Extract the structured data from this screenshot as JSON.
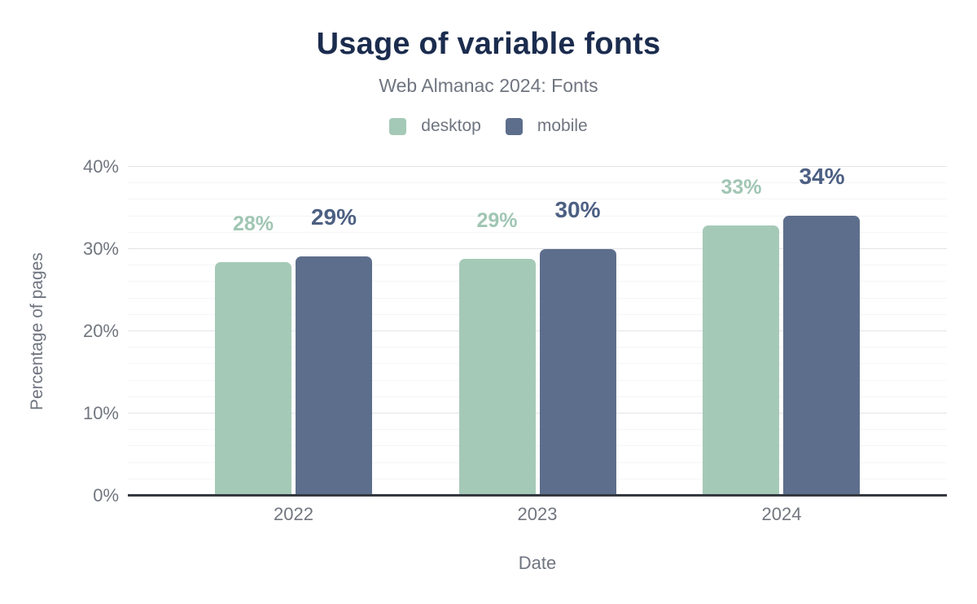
{
  "header": {
    "title": "Usage of variable fonts",
    "subtitle": "Web Almanac 2024: Fonts"
  },
  "colors": {
    "background": "#ffffff",
    "title": "#1b2c4e",
    "muted_text": "#6f7580",
    "tick_text": "#71767f",
    "axis_line": "#34383f",
    "grid_major": "#e2e4e7",
    "grid_minor": "#f4f5f6"
  },
  "chart_data": {
    "type": "bar",
    "title": "Usage of variable fonts",
    "subtitle": "Web Almanac 2024: Fonts",
    "categories": [
      "2022",
      "2023",
      "2024"
    ],
    "series": [
      {
        "name": "desktop",
        "color": "#a5c9b7",
        "label_color": "#a0c6b3",
        "values": [
          28.4,
          28.8,
          32.9
        ],
        "labels": [
          "28%",
          "29%",
          "33%"
        ]
      },
      {
        "name": "mobile",
        "color": "#5d6e8c",
        "label_color": "#4d6083",
        "values": [
          29.1,
          30.0,
          34.1
        ],
        "labels": [
          "29%",
          "30%",
          "34%"
        ]
      }
    ],
    "xlabel": "Date",
    "ylabel": "Percentage of pages",
    "ylim": [
      0,
      40
    ],
    "yticks": [
      {
        "value": 0,
        "label": "0%"
      },
      {
        "value": 10,
        "label": "10%"
      },
      {
        "value": 20,
        "label": "20%"
      },
      {
        "value": 30,
        "label": "30%"
      },
      {
        "value": 40,
        "label": "40%"
      }
    ],
    "grid": {
      "major_step": 10,
      "minor_step": 2,
      "shown": true
    },
    "legend_position": "top"
  }
}
